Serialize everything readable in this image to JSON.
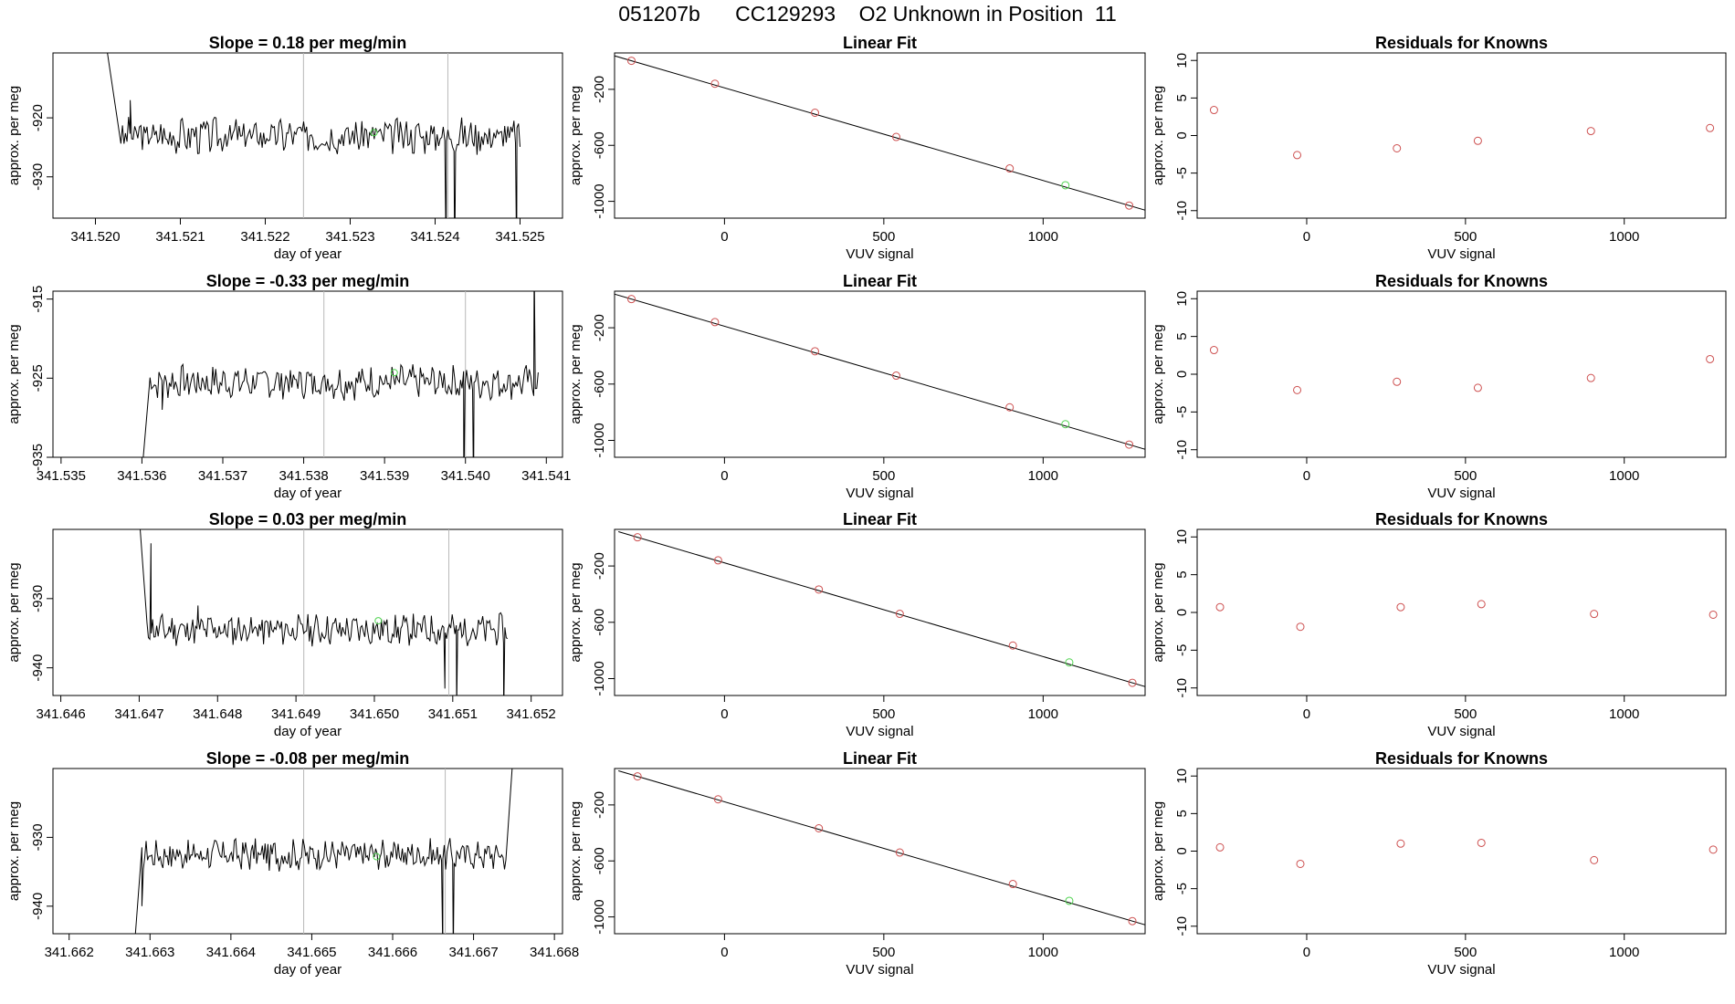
{
  "title": "051207b      CC129293    O2 Unknown in Position  11",
  "colors": {
    "known": "#cd4f4f",
    "unknown": "#4fd34f",
    "line": "#000000",
    "marker": "#b8b8b8"
  },
  "chart_data": [
    {
      "type": "line",
      "title": "Slope =  0.18  per meg/min",
      "xlabel": "day of year",
      "ylabel": "approx. per meg",
      "xlim": [
        341.5195,
        341.5255
      ],
      "ylim": [
        -937,
        -909
      ],
      "xticks": [
        341.52,
        341.521,
        341.522,
        341.523,
        341.524,
        341.525
      ],
      "xticklabels": [
        "341.520",
        "341.521",
        "341.522",
        "341.523",
        "341.524",
        "341.525"
      ],
      "yticks": [
        -920,
        -930
      ],
      "yticklabels": [
        "-920",
        "-930"
      ],
      "vlines": [
        341.52245,
        341.52415
      ],
      "series": {
        "start": 341.5203,
        "end": 341.525,
        "base": -923,
        "amp": 2.6,
        "seed": 3,
        "spikes": [
          [
            341.5201,
            -905
          ],
          [
            341.52041,
            -917
          ],
          [
            341.52413,
            -945
          ],
          [
            341.52423,
            -946
          ],
          [
            341.52496,
            -945
          ]
        ],
        "unknown_point": [
          341.52328,
          -922.5
        ]
      }
    },
    {
      "type": "line",
      "title": "Slope =  -0.33  per meg/min",
      "xlabel": "day of year",
      "ylabel": "approx. per meg",
      "xlim": [
        341.5349,
        341.5412
      ],
      "ylim": [
        -935,
        -914
      ],
      "xticks": [
        341.535,
        341.536,
        341.537,
        341.538,
        341.539,
        341.54,
        341.541
      ],
      "xticklabels": [
        "341.535",
        "341.536",
        "341.537",
        "341.538",
        "341.539",
        "341.540",
        "341.541"
      ],
      "yticks": [
        -915,
        -925,
        -935
      ],
      "yticklabels": [
        "-915",
        "-925",
        "-935"
      ],
      "vlines": [
        341.53825,
        341.54
      ],
      "series": {
        "start": 341.5361,
        "end": 341.5409,
        "base": -925.5,
        "amp": 1.8,
        "seed": 7,
        "spikes": [
          [
            341.536,
            -937
          ],
          [
            341.53625,
            -929
          ],
          [
            341.53998,
            -940
          ],
          [
            341.5401,
            -940
          ],
          [
            341.54085,
            -910
          ]
        ],
        "unknown_point": [
          341.53912,
          -924.3
        ]
      }
    },
    {
      "type": "line",
      "title": "Slope =  0.03  per meg/min",
      "xlabel": "day of year",
      "ylabel": "approx. per meg",
      "xlim": [
        341.6459,
        341.6524
      ],
      "ylim": [
        -944,
        -920
      ],
      "xticks": [
        341.646,
        341.647,
        341.648,
        341.649,
        341.65,
        341.651,
        341.652
      ],
      "xticklabels": [
        "341.646",
        "341.647",
        "341.648",
        "341.649",
        "341.650",
        "341.651",
        "341.652"
      ],
      "yticks": [
        -930,
        -940
      ],
      "yticklabels": [
        "-930",
        "-940"
      ],
      "vlines": [
        341.6491,
        341.65095
      ],
      "series": {
        "start": 341.6471,
        "end": 341.6517,
        "base": -934.5,
        "amp": 1.9,
        "seed": 11,
        "spikes": [
          [
            341.647,
            -918
          ],
          [
            341.64715,
            -922
          ],
          [
            341.64775,
            -931
          ],
          [
            341.6509,
            -943
          ],
          [
            341.65105,
            -946
          ],
          [
            341.65165,
            -947
          ]
        ],
        "unknown_point": [
          341.65005,
          -933.2
        ]
      }
    },
    {
      "type": "line",
      "title": "Slope =  -0.08  per meg/min",
      "xlabel": "day of year",
      "ylabel": "approx. per meg",
      "xlim": [
        341.6618,
        341.6681
      ],
      "ylim": [
        -944,
        -920
      ],
      "xticks": [
        341.662,
        341.663,
        341.664,
        341.665,
        341.666,
        341.667,
        341.668
      ],
      "xticklabels": [
        "341.662",
        "341.663",
        "341.664",
        "341.665",
        "341.666",
        "341.667",
        "341.668"
      ],
      "yticks": [
        -930,
        -940
      ],
      "yticklabels": [
        "-930",
        "-940"
      ],
      "vlines": [
        341.6649,
        341.66665
      ],
      "series": {
        "start": 341.6629,
        "end": 341.6674,
        "base": -932.5,
        "amp": 1.9,
        "seed": 17,
        "spikes": [
          [
            341.6628,
            -947
          ],
          [
            341.6629,
            -940
          ],
          [
            341.66662,
            -947
          ],
          [
            341.66675,
            -947
          ],
          [
            341.6675,
            -916
          ]
        ],
        "unknown_point": [
          341.6658,
          -932.8
        ]
      }
    },
    {
      "type": "scatter",
      "title": "Linear Fit",
      "xlabel": "VUV signal",
      "ylabel": "approx. per meg",
      "xlim": [
        -345,
        1320
      ],
      "ylim": [
        -1120,
        60
      ],
      "xticks": [
        0,
        500,
        1000
      ],
      "yticks": [
        -200,
        -600,
        -1000
      ],
      "knowns": [
        [
          -292,
          4
        ],
        [
          -30,
          -160
        ],
        [
          284,
          -367
        ],
        [
          539,
          -540
        ],
        [
          895,
          -765
        ],
        [
          1270,
          -1030
        ]
      ],
      "unknowns": [
        [
          1070,
          -885
        ]
      ],
      "fit_line": [
        [
          -292,
          4
        ],
        [
          1270,
          -1030
        ]
      ]
    },
    {
      "type": "scatter",
      "title": "Linear Fit",
      "xlabel": "VUV signal",
      "ylabel": "approx. per meg",
      "xlim": [
        -345,
        1320
      ],
      "ylim": [
        -1120,
        60
      ],
      "xticks": [
        0,
        500,
        1000
      ],
      "yticks": [
        -200,
        -600,
        -1000
      ],
      "knowns": [
        [
          -292,
          4
        ],
        [
          -30,
          -160
        ],
        [
          284,
          -367
        ],
        [
          539,
          -540
        ],
        [
          895,
          -765
        ],
        [
          1270,
          -1030
        ]
      ],
      "unknowns": [
        [
          1070,
          -885
        ]
      ],
      "fit_line": [
        [
          -292,
          4
        ],
        [
          1270,
          -1030
        ]
      ]
    },
    {
      "type": "scatter",
      "title": "Linear Fit",
      "xlabel": "VUV signal",
      "ylabel": "approx. per meg",
      "xlim": [
        -345,
        1320
      ],
      "ylim": [
        -1120,
        60
      ],
      "xticks": [
        0,
        500,
        1000
      ],
      "yticks": [
        -200,
        -600,
        -1000
      ],
      "knowns": [
        [
          -273,
          4
        ],
        [
          -20,
          -160
        ],
        [
          296,
          -367
        ],
        [
          550,
          -540
        ],
        [
          905,
          -765
        ],
        [
          1280,
          -1030
        ]
      ],
      "unknowns": [
        [
          1082,
          -885
        ]
      ],
      "fit_line": [
        [
          -273,
          4
        ],
        [
          1280,
          -1030
        ]
      ]
    },
    {
      "type": "scatter",
      "title": "Linear Fit",
      "xlabel": "VUV signal",
      "ylabel": "approx. per meg",
      "xlim": [
        -345,
        1320
      ],
      "ylim": [
        -1120,
        60
      ],
      "xticks": [
        0,
        500,
        1000
      ],
      "yticks": [
        -200,
        -600,
        -1000
      ],
      "knowns": [
        [
          -273,
          4
        ],
        [
          -20,
          -160
        ],
        [
          296,
          -367
        ],
        [
          550,
          -540
        ],
        [
          905,
          -765
        ],
        [
          1280,
          -1030
        ]
      ],
      "unknowns": [
        [
          1082,
          -885
        ]
      ],
      "fit_line": [
        [
          -273,
          4
        ],
        [
          1280,
          -1030
        ]
      ]
    },
    {
      "type": "scatter",
      "title": "Residuals for Knowns",
      "xlabel": "VUV signal",
      "ylabel": "approx. per meg",
      "xlim": [
        -345,
        1320
      ],
      "ylim": [
        -11,
        11
      ],
      "xticks": [
        0,
        500,
        1000
      ],
      "yticks": [
        10,
        5,
        0,
        -5,
        -10
      ],
      "knowns": [
        [
          -292,
          3.4
        ],
        [
          -30,
          -2.6
        ],
        [
          284,
          -1.7
        ],
        [
          539,
          -0.7
        ],
        [
          895,
          0.6
        ],
        [
          1270,
          1.0
        ]
      ]
    },
    {
      "type": "scatter",
      "title": "Residuals for Knowns",
      "xlabel": "VUV signal",
      "ylabel": "approx. per meg",
      "xlim": [
        -345,
        1320
      ],
      "ylim": [
        -11,
        11
      ],
      "xticks": [
        0,
        500,
        1000
      ],
      "yticks": [
        10,
        5,
        0,
        -5,
        -10
      ],
      "knowns": [
        [
          -292,
          3.2
        ],
        [
          -30,
          -2.1
        ],
        [
          284,
          -1.0
        ],
        [
          539,
          -1.8
        ],
        [
          895,
          -0.5
        ],
        [
          1270,
          2.0
        ]
      ]
    },
    {
      "type": "scatter",
      "title": "Residuals for Knowns",
      "xlabel": "VUV signal",
      "ylabel": "approx. per meg",
      "xlim": [
        -345,
        1320
      ],
      "ylim": [
        -11,
        11
      ],
      "xticks": [
        0,
        500,
        1000
      ],
      "yticks": [
        10,
        5,
        0,
        -5,
        -10
      ],
      "knowns": [
        [
          -273,
          0.7
        ],
        [
          -20,
          -1.9
        ],
        [
          296,
          0.7
        ],
        [
          550,
          1.1
        ],
        [
          905,
          -0.2
        ],
        [
          1280,
          -0.3
        ]
      ]
    },
    {
      "type": "scatter",
      "title": "Residuals for Knowns",
      "xlabel": "VUV signal",
      "ylabel": "approx. per meg",
      "xlim": [
        -345,
        1320
      ],
      "ylim": [
        -11,
        11
      ],
      "xticks": [
        0,
        500,
        1000
      ],
      "yticks": [
        10,
        5,
        0,
        -5,
        -10
      ],
      "knowns": [
        [
          -273,
          0.5
        ],
        [
          -20,
          -1.7
        ],
        [
          296,
          1.0
        ],
        [
          550,
          1.1
        ],
        [
          905,
          -1.2
        ],
        [
          1280,
          0.2
        ]
      ]
    }
  ]
}
